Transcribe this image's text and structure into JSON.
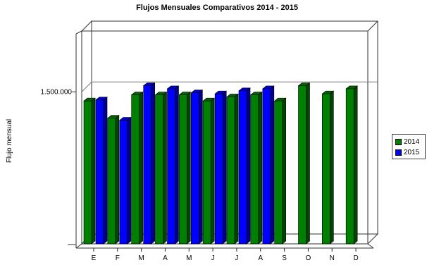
{
  "chart_data": {
    "type": "bar",
    "title": "Flujos Mensuales Comparativos 2014 - 2015",
    "ylabel": "Flujo mensual",
    "xlabel": "",
    "categories": [
      "E",
      "F",
      "M",
      "A",
      "M",
      "J",
      "J",
      "A",
      "S",
      "O",
      "N",
      "D"
    ],
    "y_ticks": [
      {
        "value": 1500000,
        "label": "1.500.000"
      }
    ],
    "ylim": [
      0,
      2100000
    ],
    "grid": true,
    "legend_position": "right",
    "series": [
      {
        "name": "2014",
        "color": "#008000",
        "values": [
          1410000,
          1240000,
          1470000,
          1470000,
          1470000,
          1410000,
          1450000,
          1470000,
          1410000,
          1560000,
          1480000,
          1530000
        ]
      },
      {
        "name": "2015",
        "color": "#0000ff",
        "values": [
          1420000,
          1220000,
          1560000,
          1530000,
          1490000,
          1480000,
          1510000,
          1530000,
          null,
          null,
          null,
          null
        ]
      }
    ]
  }
}
